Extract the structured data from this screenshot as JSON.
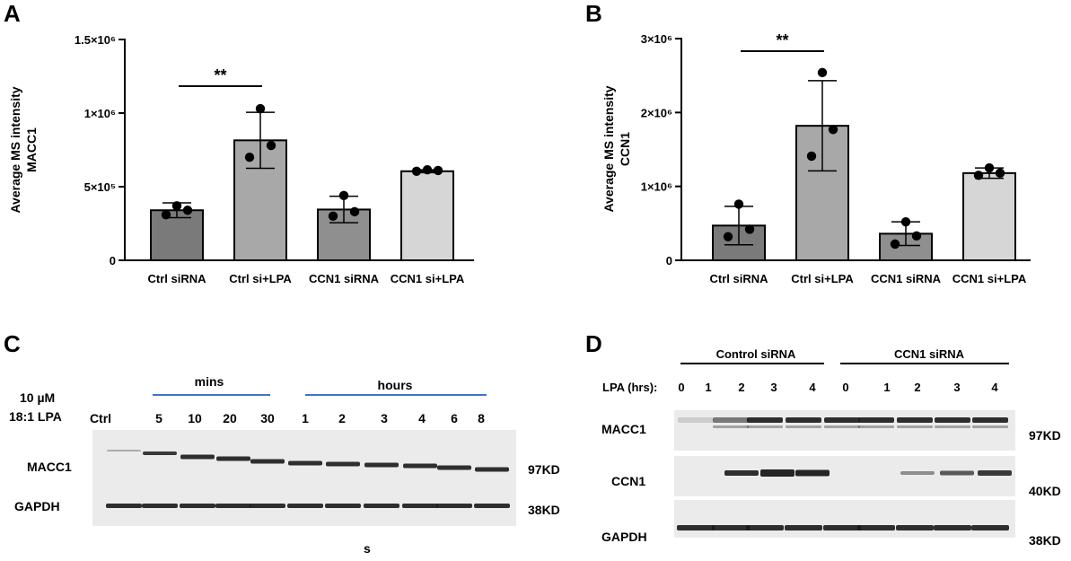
{
  "panels": {
    "A": {
      "letter": "A",
      "chart_data": {
        "type": "bar",
        "ylabel_line1": "Average MS intensity",
        "ylabel_line2": "MACC1",
        "ylim": [
          0,
          1500000
        ],
        "ytick_values": [
          0,
          500000,
          1000000,
          1500000
        ],
        "ytick_labels": [
          "0",
          "5×10⁵",
          "1×10⁶",
          "1.5×10⁶"
        ],
        "categories": [
          "Ctrl siRNA",
          "Ctrl si+LPA",
          "CCN1 siRNA",
          "CCN1 si+LPA"
        ],
        "values": [
          340000,
          815000,
          345000,
          605000
        ],
        "errors": [
          50000,
          190000,
          90000,
          10000
        ],
        "points": [
          [
            370000,
            340000,
            310000
          ],
          [
            1030000,
            780000,
            700000
          ],
          [
            440000,
            330000,
            300000
          ],
          [
            615000,
            610000,
            605000
          ]
        ],
        "bar_colors": [
          "#7a7a7a",
          "#a8a8a8",
          "#8f8f8f",
          "#d6d6d6"
        ],
        "significance": {
          "from": 0,
          "to": 1,
          "label": "**"
        }
      }
    },
    "B": {
      "letter": "B",
      "chart_data": {
        "type": "bar",
        "ylabel_line1": "Average MS intensity",
        "ylabel_line2": "CCN1",
        "ylim": [
          0,
          3000000
        ],
        "ytick_values": [
          0,
          1000000,
          2000000,
          3000000
        ],
        "ytick_labels": [
          "0",
          "1×10⁶",
          "2×10⁶",
          "3×10⁶"
        ],
        "categories": [
          "Ctrl siRNA",
          "Ctrl si+LPA",
          "CCN1 siRNA",
          "CCN1 si+LPA"
        ],
        "values": [
          470000,
          1820000,
          360000,
          1180000
        ],
        "errors": [
          260000,
          610000,
          160000,
          70000
        ],
        "points": [
          [
            760000,
            420000,
            320000
          ],
          [
            2540000,
            1770000,
            1410000
          ],
          [
            520000,
            330000,
            220000
          ],
          [
            1250000,
            1180000,
            1150000
          ]
        ],
        "bar_colors": [
          "#7a7a7a",
          "#a8a8a8",
          "#8f8f8f",
          "#d6d6d6"
        ],
        "significance": {
          "from": 0,
          "to": 1,
          "label": "**"
        }
      }
    },
    "C": {
      "letter": "C",
      "treatment_line1": "10 µM",
      "treatment_line2": "18:1 LPA",
      "group_mins": "mins",
      "group_hours": "hours",
      "lanes": [
        "Ctrl",
        "5",
        "10",
        "20",
        "30",
        "1",
        "2",
        "3",
        "4",
        "6",
        "8"
      ],
      "rows": [
        "MACC1",
        "GAPDH"
      ],
      "sizes": [
        "97KD",
        "38KD"
      ],
      "caption": "s"
    },
    "D": {
      "letter": "D",
      "group_control": "Control siRNA",
      "group_ccn1": "CCN1 siRNA",
      "lpa_label": "LPA (hrs):",
      "lanes": [
        "0",
        "1",
        "2",
        "3",
        "4",
        "0",
        "1",
        "2",
        "3",
        "4"
      ],
      "rows": [
        "MACC1",
        "CCN1",
        "GAPDH"
      ],
      "sizes": [
        "97KD",
        "40KD",
        "38KD"
      ]
    }
  },
  "colors": {
    "group_line_blue": "#4472c4",
    "blot_bg": "#ebebeb",
    "band": "#1a1a1a"
  }
}
